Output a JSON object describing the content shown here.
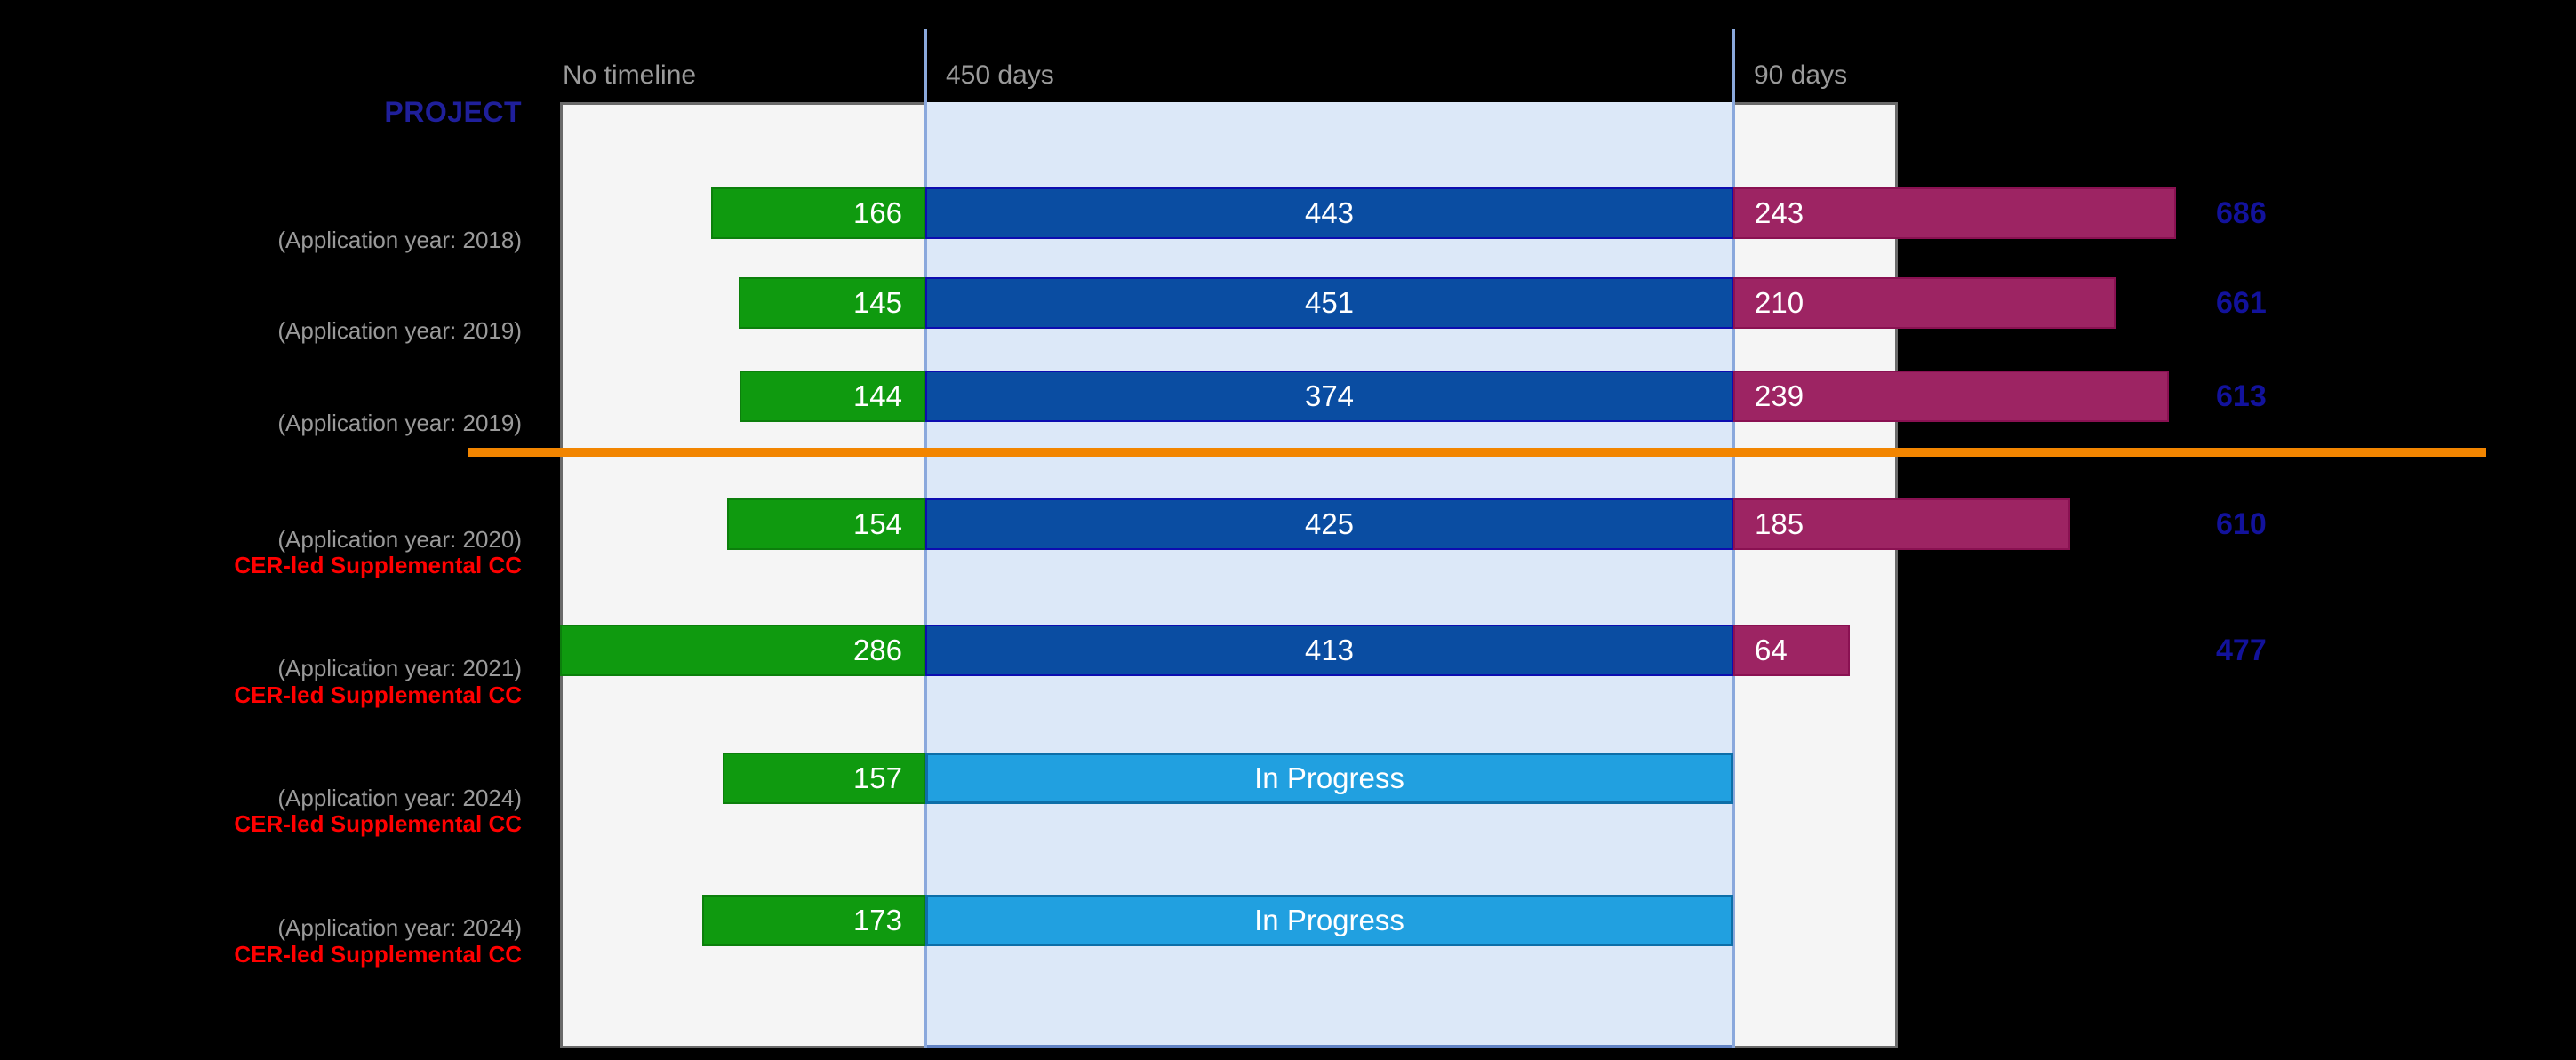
{
  "headers": {
    "project": "PROJECT",
    "no_timeline": "No timeline",
    "review_window": "450 days",
    "decision_window": "90 days"
  },
  "labels": {
    "cer_supplemental": "CER-led Supplemental CC",
    "in_progress": "In Progress"
  },
  "colors": {
    "plot_bg": "#F5F5F5",
    "band_blue": "#DCE8F8",
    "band_edge": "#6283C4",
    "line_blue": "#8AA8DC",
    "border_grey": "#6A6A6A",
    "green": "#0F9A0F",
    "green_edge": "#0C7F0C",
    "dark_blue": "#0A4DA2",
    "dark_blue_edge": "#0D0DB0",
    "progress_blue": "#21A0E0",
    "progress_edge": "#0D6EA8",
    "magenta": "#9D2463",
    "magenta_edge": "#8A1152",
    "orange": "#F28500",
    "totals_navy": "#12129C",
    "project_blue": "#1F1F9B",
    "grey_text": "#9A9A9A",
    "red_text": "#FF0000"
  },
  "chart_data": {
    "type": "bar",
    "orientation": "horizontal",
    "column_headers": [
      "No timeline",
      "450 days",
      "90 days"
    ],
    "review_window_days": 450,
    "decision_window_days": 90,
    "separator_after_row": 3,
    "rows": [
      {
        "label": "(Application year: 2018)",
        "application_year": 2018,
        "cer_led_supplemental_cc": false,
        "no_timeline_days": 166,
        "review_days": 443,
        "decision_days": 243,
        "total_days": 686,
        "status": "completed"
      },
      {
        "label": "(Application year: 2019)",
        "application_year": 2019,
        "cer_led_supplemental_cc": false,
        "no_timeline_days": 145,
        "review_days": 451,
        "decision_days": 210,
        "total_days": 661,
        "status": "completed"
      },
      {
        "label": "(Application year: 2019)",
        "application_year": 2019,
        "cer_led_supplemental_cc": false,
        "no_timeline_days": 144,
        "review_days": 374,
        "decision_days": 239,
        "total_days": 613,
        "status": "completed"
      },
      {
        "label": "(Application year: 2020)",
        "application_year": 2020,
        "cer_led_supplemental_cc": true,
        "no_timeline_days": 154,
        "review_days": 425,
        "decision_days": 185,
        "total_days": 610,
        "status": "completed"
      },
      {
        "label": "(Application year: 2021)",
        "application_year": 2021,
        "cer_led_supplemental_cc": true,
        "no_timeline_days": 286,
        "review_days": 413,
        "decision_days": 64,
        "total_days": 477,
        "status": "completed"
      },
      {
        "label": "(Application year: 2024)",
        "application_year": 2024,
        "cer_led_supplemental_cc": true,
        "no_timeline_days": 157,
        "review_days": null,
        "decision_days": null,
        "total_days": null,
        "status": "In Progress"
      },
      {
        "label": "(Application year: 2024)",
        "application_year": 2024,
        "cer_led_supplemental_cc": true,
        "no_timeline_days": 173,
        "review_days": null,
        "decision_days": null,
        "total_days": null,
        "status": "In Progress"
      }
    ]
  }
}
